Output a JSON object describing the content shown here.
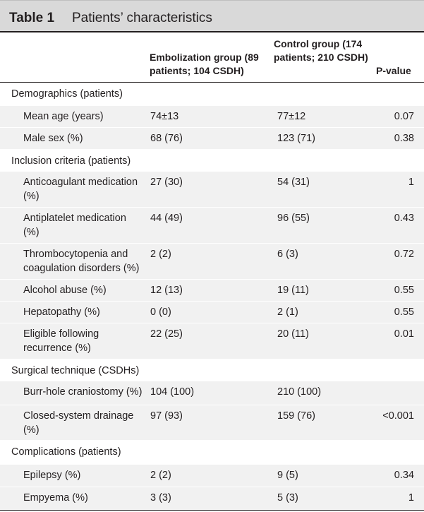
{
  "table": {
    "number": "Table 1",
    "title": "Patients’ characteristics",
    "headers": {
      "embolization": "Embolization group (89 patients; 104 CSDH)",
      "control": "Control group (174 patients; 210 CSDH)",
      "pvalue": "P-value"
    },
    "rows": [
      {
        "kind": "section",
        "label": "Demographics (patients)"
      },
      {
        "kind": "data",
        "label": "Mean age (years)",
        "emb": "74±13",
        "ctl": "77±12",
        "p": "0.07"
      },
      {
        "kind": "data",
        "label": "Male sex (%)",
        "emb": "68 (76)",
        "ctl": "123 (71)",
        "p": "0.38"
      },
      {
        "kind": "section",
        "label": "Inclusion criteria (patients)"
      },
      {
        "kind": "data",
        "label": "Anticoagulant medication (%)",
        "emb": "27 (30)",
        "ctl": "54 (31)",
        "p": "1"
      },
      {
        "kind": "data",
        "label": "Antiplatelet medication (%)",
        "emb": "44 (49)",
        "ctl": "96 (55)",
        "p": "0.43"
      },
      {
        "kind": "data",
        "label": "Thrombocytopenia and coagulation disorders (%)",
        "emb": "2 (2)",
        "ctl": "6 (3)",
        "p": "0.72"
      },
      {
        "kind": "data",
        "label": "Alcohol abuse (%)",
        "emb": "12 (13)",
        "ctl": "19 (11)",
        "p": "0.55"
      },
      {
        "kind": "data",
        "label": "Hepatopathy (%)",
        "emb": "0 (0)",
        "ctl": "2 (1)",
        "p": "0.55"
      },
      {
        "kind": "data",
        "label": "Eligible following recurrence (%)",
        "emb": "22 (25)",
        "ctl": "20 (11)",
        "p": "0.01"
      },
      {
        "kind": "section",
        "label": "Surgical technique (CSDHs)"
      },
      {
        "kind": "data",
        "label": "Burr-hole craniostomy (%)",
        "emb": "104 (100)",
        "ctl": "210 (100)",
        "p": ""
      },
      {
        "kind": "data",
        "label": "Closed-system drainage (%)",
        "emb": "97 (93)",
        "ctl": "159 (76)",
        "p": "<0.001"
      },
      {
        "kind": "section",
        "label": "Complications (patients)"
      },
      {
        "kind": "data",
        "label": "Epilepsy (%)",
        "emb": "2 (2)",
        "ctl": "9 (5)",
        "p": "0.34"
      },
      {
        "kind": "data",
        "label": "Empyema (%)",
        "emb": "3 (3)",
        "ctl": "5 (3)",
        "p": "1"
      }
    ]
  }
}
